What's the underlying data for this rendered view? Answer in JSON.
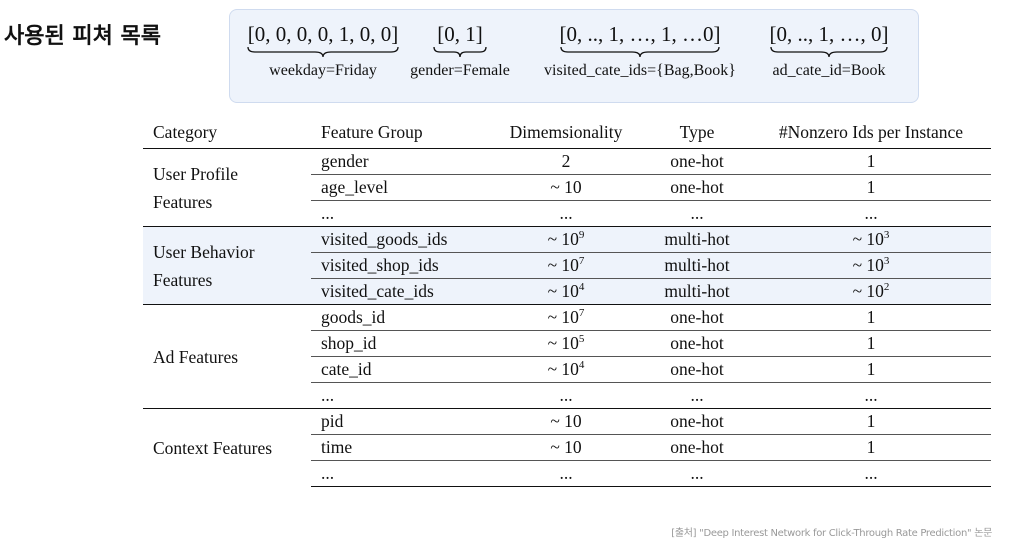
{
  "title": "사용된 피쳐 목록",
  "encodings": [
    {
      "vector": "[0, 0, 0, 0, 1, 0, 0]",
      "label": "weekday=Friday"
    },
    {
      "vector": "[0, 1]",
      "label": "gender=Female"
    },
    {
      "vector": "[0, .., 1, …, 1, …0]",
      "label": "visited_cate_ids={Bag,Book}"
    },
    {
      "vector": "[0, .., 1, …, 0]",
      "label": "ad_cate_id=Book"
    }
  ],
  "table": {
    "headers": [
      "Category",
      "Feature Group",
      "Dimemsionality",
      "Type",
      "#Nonzero Ids per Instance"
    ],
    "groups": [
      {
        "category_line1": "User Profile",
        "category_line2": "Features",
        "rows": [
          {
            "feature": "gender",
            "dim_base": "2",
            "dim_exp": "",
            "type": "one-hot",
            "nz_base": "1",
            "nz_exp": ""
          },
          {
            "feature": "age_level",
            "dim_base": "~ 10",
            "dim_exp": "",
            "type": "one-hot",
            "nz_base": "1",
            "nz_exp": ""
          },
          {
            "feature": "...",
            "dim_base": "...",
            "dim_exp": "",
            "type": "...",
            "nz_base": "...",
            "nz_exp": ""
          }
        ]
      },
      {
        "category_line1": "User Behavior",
        "category_line2": "Features",
        "rows": [
          {
            "feature": "visited_goods_ids",
            "dim_base": "~ 10",
            "dim_exp": "9",
            "type": "multi-hot",
            "nz_base": "~ 10",
            "nz_exp": "3"
          },
          {
            "feature": "visited_shop_ids",
            "dim_base": "~ 10",
            "dim_exp": "7",
            "type": "multi-hot",
            "nz_base": "~ 10",
            "nz_exp": "3"
          },
          {
            "feature": "visited_cate_ids",
            "dim_base": "~ 10",
            "dim_exp": "4",
            "type": "multi-hot",
            "nz_base": "~ 10",
            "nz_exp": "2"
          }
        ]
      },
      {
        "category_line1": "Ad Features",
        "category_line2": "",
        "rows": [
          {
            "feature": "goods_id",
            "dim_base": "~ 10",
            "dim_exp": "7",
            "type": "one-hot",
            "nz_base": "1",
            "nz_exp": ""
          },
          {
            "feature": "shop_id",
            "dim_base": "~ 10",
            "dim_exp": "5",
            "type": "one-hot",
            "nz_base": "1",
            "nz_exp": ""
          },
          {
            "feature": "cate_id",
            "dim_base": "~ 10",
            "dim_exp": "4",
            "type": "one-hot",
            "nz_base": "1",
            "nz_exp": ""
          },
          {
            "feature": "...",
            "dim_base": "...",
            "dim_exp": "",
            "type": "...",
            "nz_base": "...",
            "nz_exp": ""
          }
        ]
      },
      {
        "category_line1": "Context Features",
        "category_line2": "",
        "rows": [
          {
            "feature": "pid",
            "dim_base": "~ 10",
            "dim_exp": "",
            "type": "one-hot",
            "nz_base": "1",
            "nz_exp": ""
          },
          {
            "feature": "time",
            "dim_base": "~ 10",
            "dim_exp": "",
            "type": "one-hot",
            "nz_base": "1",
            "nz_exp": ""
          },
          {
            "feature": "...",
            "dim_base": "...",
            "dim_exp": "",
            "type": "...",
            "nz_base": "...",
            "nz_exp": ""
          }
        ]
      }
    ]
  },
  "source": "[출처] \"Deep Interest Network for Click-Through Rate Prediction\" 논문",
  "colors": {
    "highlight": "#eef3fb",
    "box_border": "#cfdbef"
  }
}
